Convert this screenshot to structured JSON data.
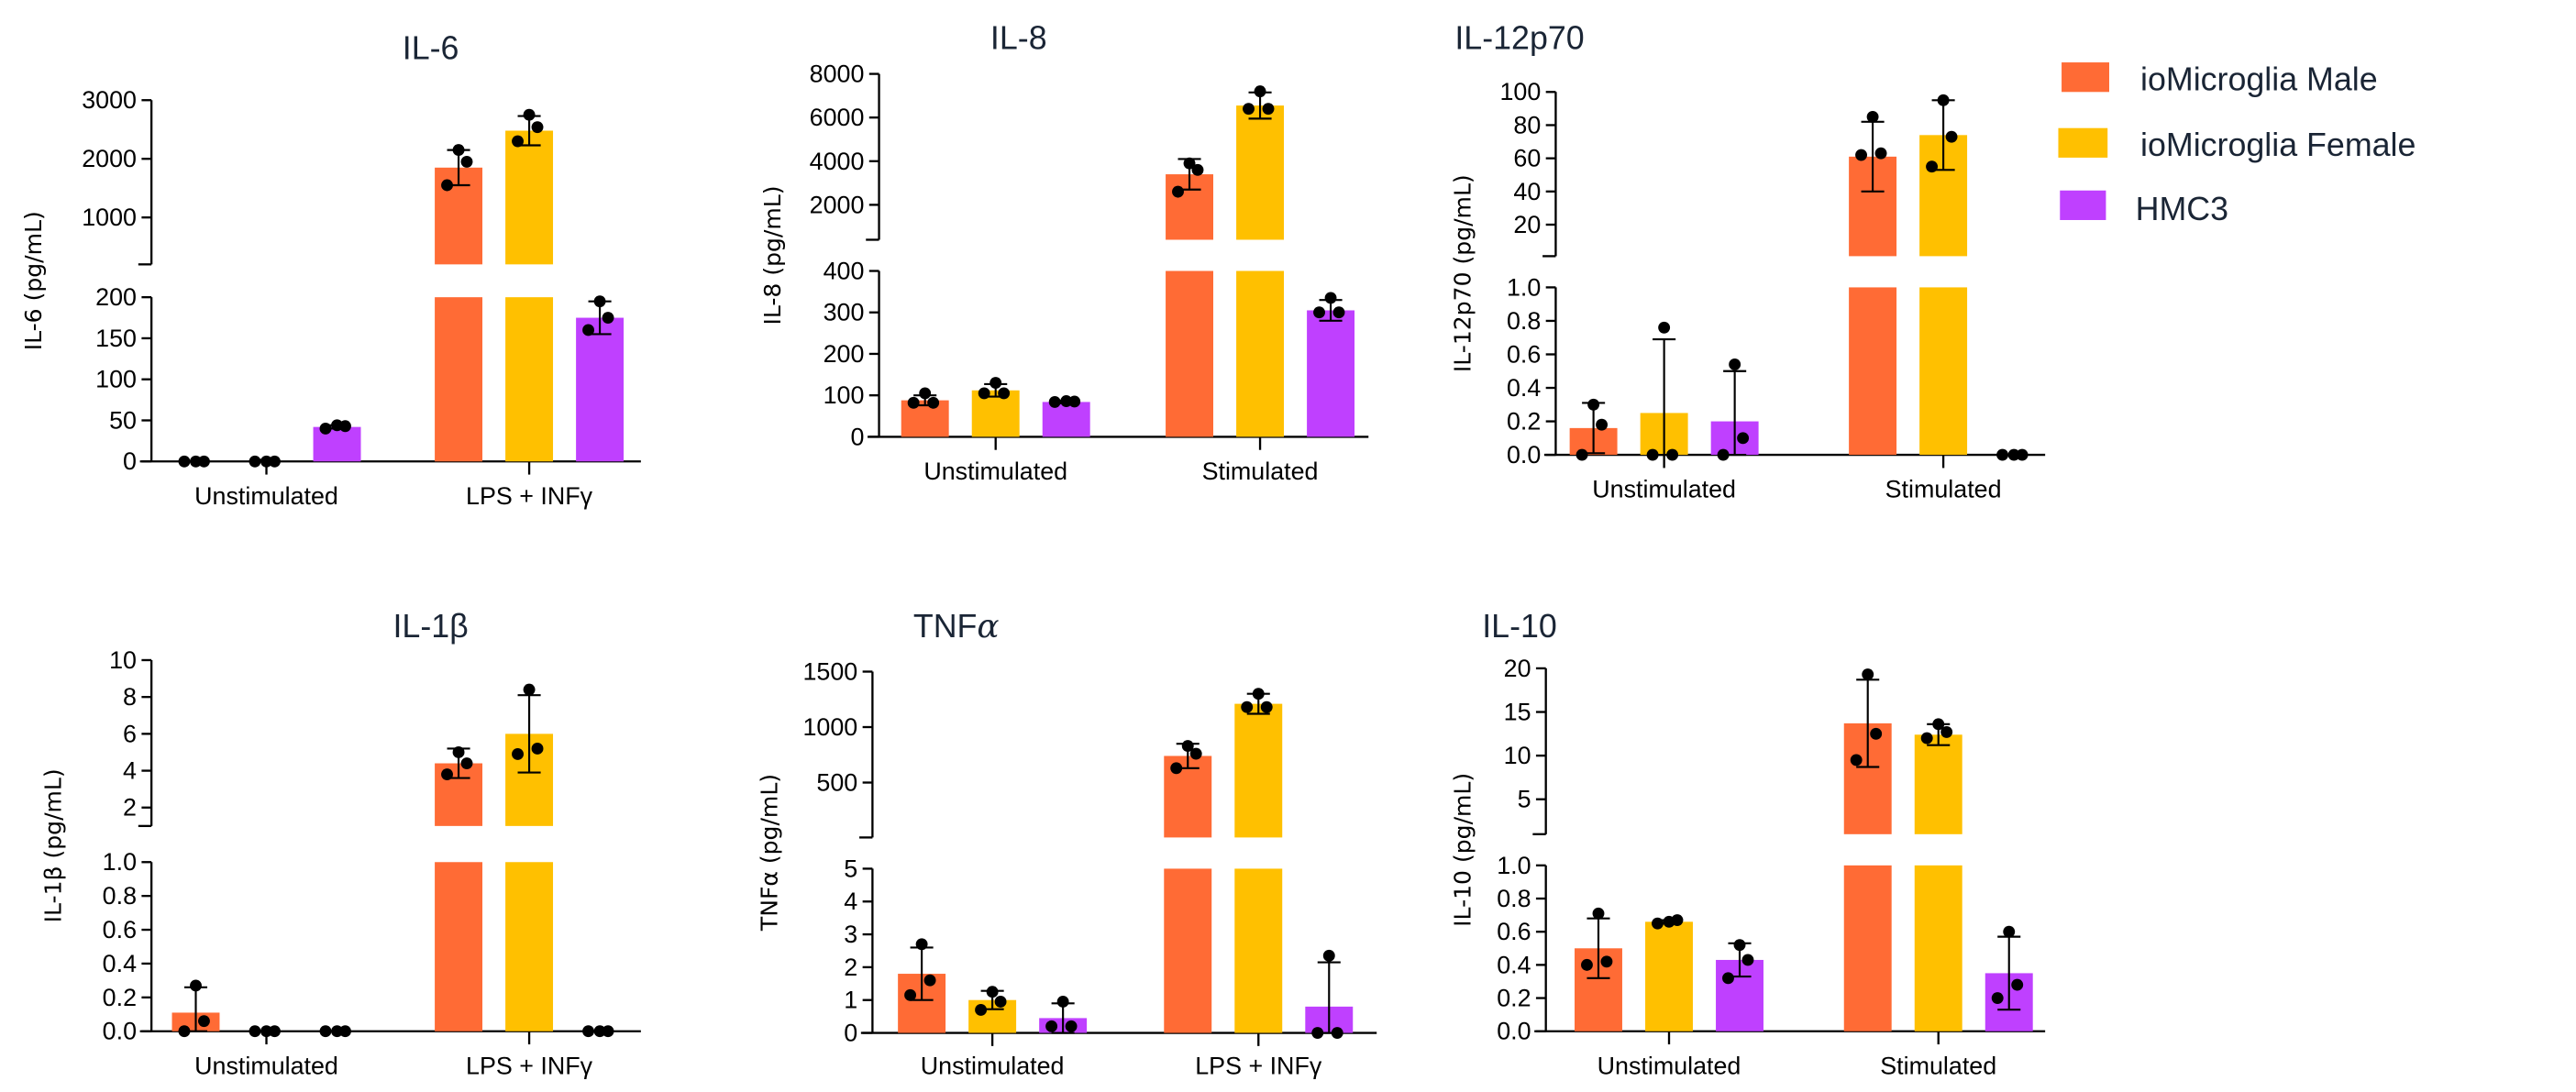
{
  "chart_data": {
    "type": "bar",
    "legend": {
      "placement": "right",
      "series": [
        {
          "name": "ioMicroglia Male",
          "color": "#FF6B35"
        },
        {
          "name": "ioMicroglia Female",
          "color": "#FFC000"
        },
        {
          "name": "HMC3",
          "color": "#BF40FF"
        }
      ]
    },
    "panels": [
      {
        "title": "IL-6",
        "title_italic_tail": "",
        "ylabel": "IL-6 (pg/mL)",
        "categories": [
          "Unstimulated",
          "LPS + INFγ"
        ],
        "lower": {
          "range": [
            0,
            200
          ],
          "ticks": [
            0,
            50,
            100,
            150,
            200
          ],
          "tick_labels": [
            "0",
            "50",
            "100",
            "150",
            "200"
          ]
        },
        "upper": {
          "range": [
            200,
            3000
          ],
          "ticks": [
            1000,
            2000,
            3000
          ],
          "tick_labels": [
            "1000",
            "2000",
            "3000"
          ]
        },
        "groups": [
          [
            {
              "mean": 0,
              "sd": 0,
              "points": [
                0,
                0,
                0
              ]
            },
            {
              "mean": 0,
              "sd": 2,
              "points": [
                0,
                0,
                0
              ]
            },
            {
              "mean": 42,
              "sd": 2,
              "points": [
                40,
                43,
                44
              ]
            }
          ],
          [
            {
              "mean": 1850,
              "sd": 300,
              "points": [
                1550,
                1950,
                2150
              ]
            },
            {
              "mean": 2480,
              "sd": 250,
              "points": [
                2300,
                2540,
                2750
              ]
            },
            {
              "mean": 175,
              "sd": 20,
              "points": [
                160,
                175,
                195
              ]
            }
          ]
        ]
      },
      {
        "title": "IL-8",
        "title_italic_tail": "",
        "ylabel": "IL-8 (pg/mL)",
        "categories": [
          "Unstimulated",
          "Stimulated"
        ],
        "lower": {
          "range": [
            0,
            400
          ],
          "ticks": [
            0,
            100,
            200,
            300,
            400
          ],
          "tick_labels": [
            "0",
            "100",
            "200",
            "300",
            "400"
          ]
        },
        "upper": {
          "range": [
            400,
            8000
          ],
          "ticks": [
            2000,
            4000,
            6000,
            8000
          ],
          "tick_labels": [
            "2000",
            "4000",
            "6000",
            "8000"
          ]
        },
        "groups": [
          [
            {
              "mean": 88,
              "sd": 12,
              "points": [
                82,
                82,
                105
              ]
            },
            {
              "mean": 112,
              "sd": 15,
              "points": [
                105,
                105,
                130
              ]
            },
            {
              "mean": 84,
              "sd": 3,
              "points": [
                84,
                85,
                86
              ]
            }
          ],
          [
            {
              "mean": 3400,
              "sd": 700,
              "points": [
                2600,
                3600,
                3900
              ]
            },
            {
              "mean": 6550,
              "sd": 600,
              "points": [
                6400,
                6400,
                7200
              ]
            },
            {
              "mean": 305,
              "sd": 25,
              "points": [
                300,
                300,
                335
              ]
            }
          ]
        ]
      },
      {
        "title": "IL-12p70",
        "title_italic_tail": "",
        "ylabel": "IL-12p70 (pg/mL)",
        "categories": [
          "Unstimulated",
          "Stimulated"
        ],
        "lower": {
          "range": [
            0,
            1
          ],
          "ticks": [
            0,
            0.2,
            0.4,
            0.6,
            0.8,
            1.0
          ],
          "tick_labels": [
            "0.0",
            "0.2",
            "0.4",
            "0.6",
            "0.8",
            "1.0"
          ]
        },
        "upper": {
          "range": [
            1,
            100
          ],
          "ticks": [
            20,
            40,
            60,
            80,
            100
          ],
          "tick_labels": [
            "20",
            "40",
            "60",
            "80",
            "100"
          ]
        },
        "groups": [
          [
            {
              "mean": 0.16,
              "sd": 0.15,
              "points": [
                0,
                0.18,
                0.3
              ]
            },
            {
              "mean": 0.25,
              "sd": 0.44,
              "points": [
                0,
                0,
                0.76
              ]
            },
            {
              "mean": 0.2,
              "sd": 0.3,
              "points": [
                0,
                0.1,
                0.54
              ]
            }
          ],
          [
            {
              "mean": 61,
              "sd": 21,
              "points": [
                62,
                63,
                85
              ]
            },
            {
              "mean": 74,
              "sd": 21,
              "points": [
                55,
                73,
                95
              ]
            },
            {
              "mean": 0,
              "sd": 0,
              "points": [
                0,
                0,
                0
              ]
            }
          ]
        ]
      },
      {
        "title": "IL-1β",
        "title_italic_tail": "",
        "ylabel": "IL-1β (pg/mL)",
        "categories": [
          "Unstimulated",
          "LPS + INFγ"
        ],
        "lower": {
          "range": [
            0,
            1
          ],
          "ticks": [
            0,
            0.2,
            0.4,
            0.6,
            0.8,
            1.0
          ],
          "tick_labels": [
            "0.0",
            "0.2",
            "0.4",
            "0.6",
            "0.8",
            "1.0"
          ]
        },
        "upper": {
          "range": [
            1,
            10
          ],
          "ticks": [
            2,
            4,
            6,
            8,
            10
          ],
          "tick_labels": [
            "2",
            "4",
            "6",
            "8",
            "10"
          ]
        },
        "groups": [
          [
            {
              "mean": 0.11,
              "sd": 0.15,
              "points": [
                0,
                0.06,
                0.27
              ]
            },
            {
              "mean": 0,
              "sd": 0,
              "points": [
                0,
                0,
                0
              ]
            },
            {
              "mean": 0,
              "sd": 0,
              "points": [
                0,
                0,
                0
              ]
            }
          ],
          [
            {
              "mean": 4.4,
              "sd": 0.8,
              "points": [
                3.8,
                4.4,
                5.0
              ]
            },
            {
              "mean": 6.0,
              "sd": 2.1,
              "points": [
                4.9,
                5.2,
                8.4
              ]
            },
            {
              "mean": 0,
              "sd": 0,
              "points": [
                0,
                0,
                0
              ]
            }
          ]
        ]
      },
      {
        "title": "TNF",
        "title_italic_tail": "α",
        "ylabel": "TNFα (pg/mL)",
        "categories": [
          "Unstimulated",
          "LPS + INFγ"
        ],
        "lower": {
          "range": [
            0,
            5
          ],
          "ticks": [
            0,
            1,
            2,
            3,
            4,
            5
          ],
          "tick_labels": [
            "0",
            "1",
            "2",
            "3",
            "4",
            "5"
          ]
        },
        "upper": {
          "range": [
            5,
            1500
          ],
          "ticks": [
            500,
            1000,
            1500
          ],
          "tick_labels": [
            "500",
            "1000",
            "1500"
          ]
        },
        "groups": [
          [
            {
              "mean": 1.8,
              "sd": 0.8,
              "points": [
                1.15,
                1.6,
                2.7
              ]
            },
            {
              "mean": 1.0,
              "sd": 0.28,
              "points": [
                0.7,
                0.95,
                1.25
              ]
            },
            {
              "mean": 0.45,
              "sd": 0.45,
              "points": [
                0.2,
                0.2,
                0.95
              ]
            }
          ],
          [
            {
              "mean": 740,
              "sd": 110,
              "points": [
                630,
                760,
                830
              ]
            },
            {
              "mean": 1210,
              "sd": 90,
              "points": [
                1180,
                1180,
                1300
              ]
            },
            {
              "mean": 0.8,
              "sd": 1.35,
              "points": [
                0,
                0,
                2.35
              ]
            }
          ]
        ]
      },
      {
        "title": "IL-10",
        "title_italic_tail": "",
        "ylabel": "IL-10 (pg/mL)",
        "categories": [
          "Unstimulated",
          "Stimulated"
        ],
        "lower": {
          "range": [
            0,
            1
          ],
          "ticks": [
            0,
            0.2,
            0.4,
            0.6,
            0.8,
            1.0
          ],
          "tick_labels": [
            "0.0",
            "0.2",
            "0.4",
            "0.6",
            "0.8",
            "1.0"
          ]
        },
        "upper": {
          "range": [
            1,
            20
          ],
          "ticks": [
            5,
            10,
            15,
            20
          ],
          "tick_labels": [
            "5",
            "10",
            "15",
            "20"
          ]
        },
        "groups": [
          [
            {
              "mean": 0.5,
              "sd": 0.18,
              "points": [
                0.4,
                0.42,
                0.71
              ]
            },
            {
              "mean": 0.66,
              "sd": 0.01,
              "points": [
                0.65,
                0.67,
                0.66
              ]
            },
            {
              "mean": 0.43,
              "sd": 0.1,
              "points": [
                0.32,
                0.43,
                0.52
              ]
            }
          ],
          [
            {
              "mean": 13.7,
              "sd": 5,
              "points": [
                9.5,
                12.5,
                19.3
              ]
            },
            {
              "mean": 12.4,
              "sd": 1.2,
              "points": [
                12.0,
                12.7,
                13.6
              ]
            },
            {
              "mean": 0.35,
              "sd": 0.22,
              "points": [
                0.2,
                0.28,
                0.6
              ]
            }
          ]
        ]
      }
    ]
  }
}
